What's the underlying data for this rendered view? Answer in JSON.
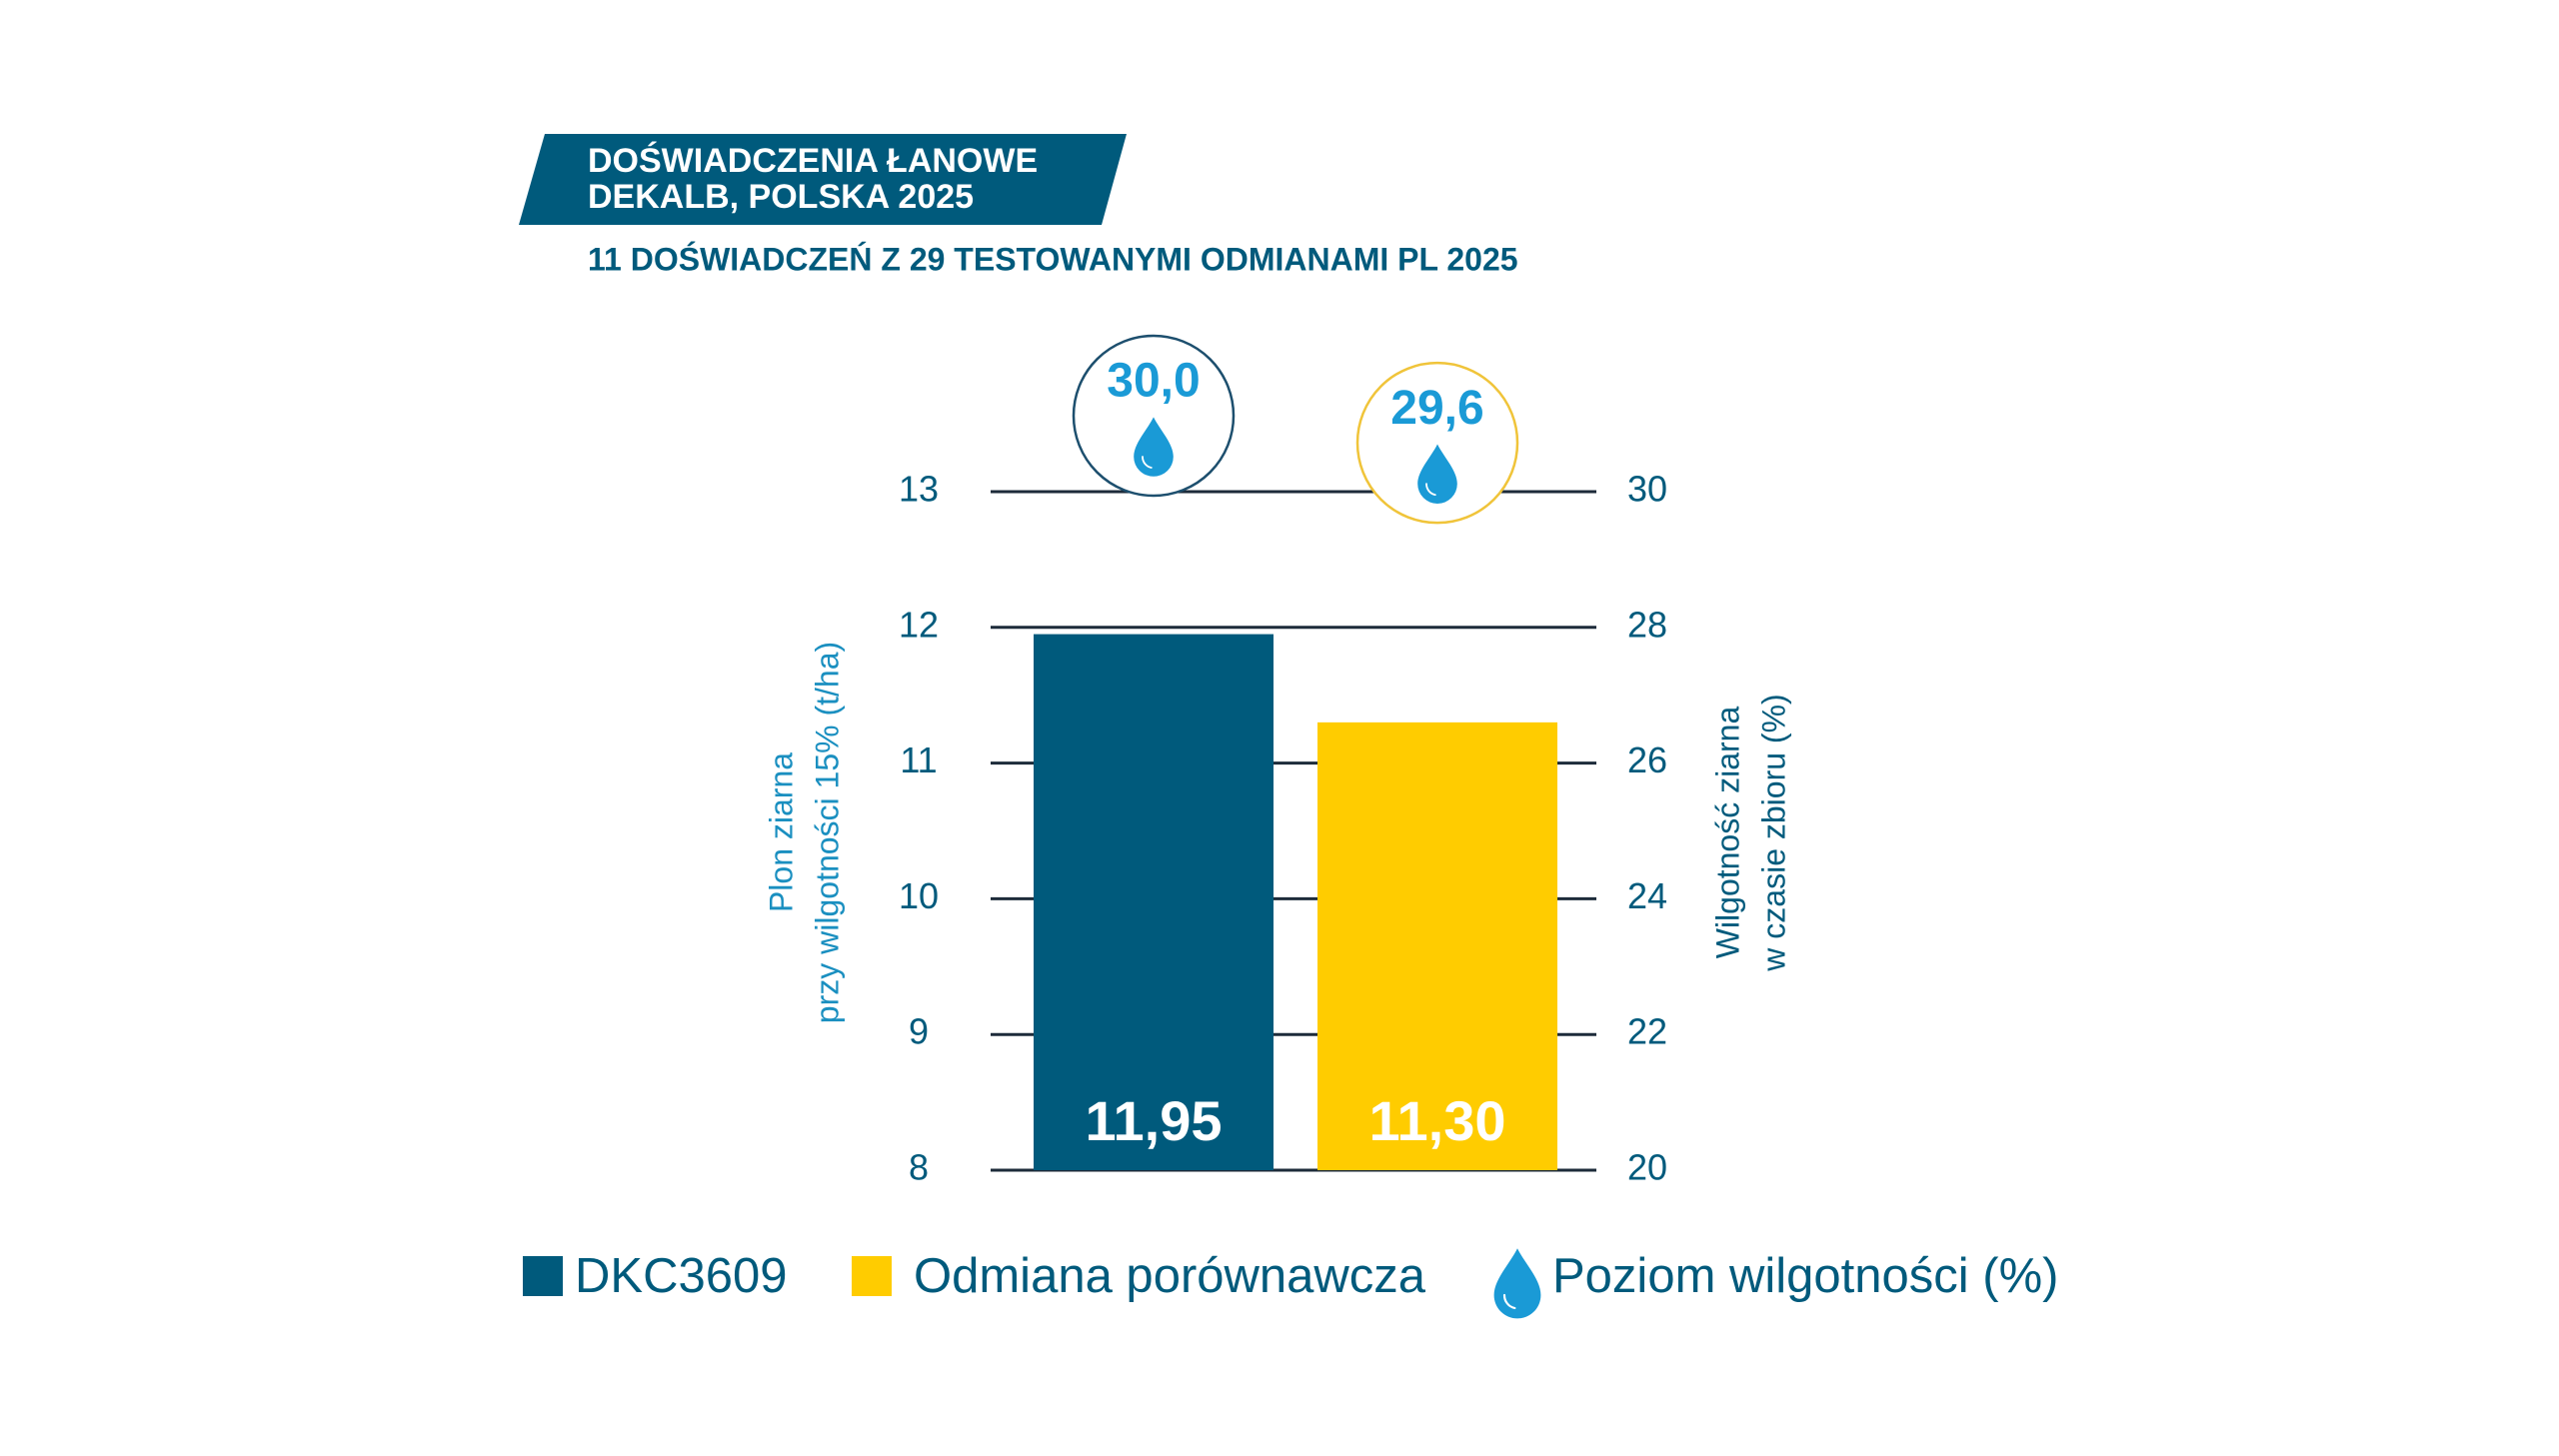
{
  "chart_data": {
    "type": "bar",
    "title": [
      "DOŚWIADCZENIA ŁANOWE",
      "DEKALB, POLSKA 2025"
    ],
    "subtitle": "11 DOŚWIADCZEŃ Z 29 TESTOWANYMI ODMIANAMI PL 2025",
    "ylabel": [
      "Plon ziarna",
      "przy wilgotności 15% (t/ha)"
    ],
    "y2label": [
      "Wilgotność ziarna",
      "w czasie zbioru (%)"
    ],
    "ylim": [
      8,
      13
    ],
    "yticks": [
      8,
      9,
      10,
      11,
      12,
      13
    ],
    "y2lim": [
      20,
      30
    ],
    "y2ticks": [
      20,
      22,
      24,
      26,
      28,
      30
    ],
    "grid": true,
    "series": [
      {
        "name": "DKC3609",
        "color": "#005a7c",
        "values": [
          11.95
        ],
        "value_labels": [
          "11,95"
        ]
      },
      {
        "name": "Odmiana porównawcza",
        "color": "#ffcc00",
        "values": [
          11.3
        ],
        "value_labels": [
          "11,30"
        ]
      },
      {
        "name": "Poziom wilgotności (%)",
        "type": "marker",
        "axis": "y2",
        "color": "#1a9ad6",
        "ring_colors": [
          "#1d4f6e",
          "#f0c43a"
        ],
        "values": [
          30.0,
          29.6
        ],
        "value_labels": [
          "30,0",
          "29,6"
        ]
      }
    ]
  }
}
